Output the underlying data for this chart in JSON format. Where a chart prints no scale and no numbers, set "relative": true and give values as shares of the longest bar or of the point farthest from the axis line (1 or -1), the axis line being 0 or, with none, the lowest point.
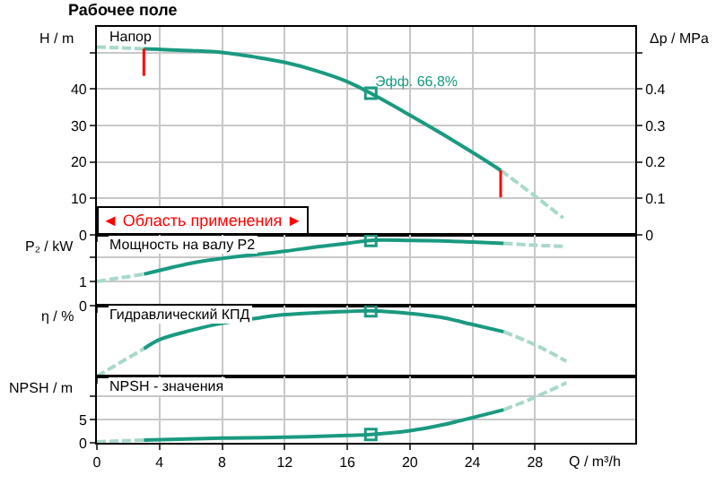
{
  "chart_data": [
    {
      "type": "line",
      "title": "Рабочее поле",
      "ylabel": "H / m",
      "y2label": "Δp / MPa",
      "xlim": [
        0,
        34.4
      ],
      "xticks": [
        0,
        4,
        8,
        12,
        16,
        20,
        24,
        28
      ],
      "ylim": [
        0,
        57
      ],
      "yticks": [
        0,
        10,
        20,
        30,
        40,
        {
          "value": 50,
          "label": null
        }
      ],
      "y2lim": [
        0,
        0.57
      ],
      "y2ticks": [
        0,
        0.1,
        0.2,
        0.3,
        0.4,
        {
          "value": 0.5,
          "label": null
        }
      ],
      "grid": true,
      "tick_labels": "y",
      "annotations": [
        "Напор",
        {
          "text": "Эфф. 66,8%",
          "x": 17.5,
          "y": 38.8
        },
        "◄ Область применения ►"
      ],
      "ref_lines": [
        {
          "axis": "x",
          "value": 3,
          "color": "#ff0000"
        },
        {
          "axis": "x",
          "value": 25.8,
          "color": "#ff0000"
        }
      ],
      "series": [
        {
          "color": "#1a9a80",
          "x": [
            3,
            6,
            8,
            10,
            12,
            14,
            16,
            17.5,
            20,
            22,
            24,
            25.8
          ],
          "values": [
            51,
            50.5,
            50,
            48.8,
            47.3,
            45,
            42,
            38.8,
            32.8,
            27.8,
            22.6,
            17.7
          ]
        },
        {
          "color": "#a8d8cc",
          "line_style": "dashed",
          "x": [
            0,
            3
          ],
          "values": [
            51.5,
            51
          ]
        },
        {
          "color": "#a8d8cc",
          "line_style": "dashed",
          "x": [
            25.8,
            28,
            29.8
          ],
          "values": [
            17.7,
            10.6,
            4.6
          ]
        },
        {
          "type": "scatter",
          "marker": "square",
          "color": "#1a9a80",
          "x": [
            17.5
          ],
          "values": [
            38.8
          ]
        }
      ]
    },
    {
      "type": "line",
      "ylabel": "P₂ / kW",
      "xlim": [
        0,
        34.4
      ],
      "xticks": [
        0,
        4,
        8,
        12,
        16,
        20,
        24,
        28
      ],
      "ylim": [
        0,
        2.93
      ],
      "yticks": [
        0,
        1,
        {
          "value": 2,
          "label": null
        }
      ],
      "grid": true,
      "tick_labels": "y",
      "annotations": [
        "Мощность на валу P2"
      ],
      "series": [
        {
          "color": "#1a9a80",
          "x": [
            3,
            6,
            8,
            10,
            12,
            14,
            16,
            17.5,
            20,
            22,
            24,
            26
          ],
          "values": [
            1.3,
            1.75,
            1.95,
            2.1,
            2.25,
            2.43,
            2.58,
            2.7,
            2.7,
            2.68,
            2.63,
            2.58
          ]
        },
        {
          "color": "#a8d8cc",
          "line_style": "dashed",
          "x": [
            0,
            3
          ],
          "values": [
            1.0,
            1.3
          ]
        },
        {
          "color": "#a8d8cc",
          "line_style": "dashed",
          "x": [
            26,
            28,
            30
          ],
          "values": [
            2.58,
            2.5,
            2.45
          ]
        },
        {
          "type": "scatter",
          "marker": "square",
          "color": "#1a9a80",
          "x": [
            17.5
          ],
          "values": [
            2.7
          ]
        }
      ]
    },
    {
      "type": "line",
      "ylabel": "η / %",
      "relative": true,
      "xlim": [
        0,
        34.4
      ],
      "xticks": [
        0,
        4,
        8,
        12,
        16,
        20,
        24,
        28
      ],
      "grid": "x",
      "tick_labels": false,
      "annotations": [
        "Гидравлический КПД"
      ],
      "series": [
        {
          "color": "#1a9a80",
          "x": [
            3,
            4,
            6,
            8,
            10,
            12,
            14,
            16,
            17.5,
            20,
            22,
            24,
            26
          ],
          "values": [
            0.42,
            0.56,
            0.7,
            0.81,
            0.88,
            0.94,
            0.97,
            0.99,
            1,
            0.96,
            0.9,
            0.79,
            0.68
          ]
        },
        {
          "color": "#a8d8cc",
          "line_style": "dashed",
          "x": [
            0,
            3
          ],
          "values": [
            0,
            0.42
          ]
        },
        {
          "color": "#a8d8cc",
          "line_style": "dashed",
          "x": [
            26,
            28,
            30
          ],
          "values": [
            0.68,
            0.48,
            0.23
          ]
        },
        {
          "type": "scatter",
          "marker": "square",
          "color": "#1a9a80",
          "x": [
            17.5
          ],
          "values": [
            1
          ]
        }
      ]
    },
    {
      "type": "line",
      "ylabel": "NPSH / m",
      "xlabel": "Q / m³/h",
      "xlim": [
        0,
        34.4
      ],
      "xticks": [
        0,
        4,
        8,
        12,
        16,
        20,
        24,
        28
      ],
      "ylim": [
        0,
        14.3
      ],
      "yticks": [
        0,
        5,
        {
          "value": 10,
          "label": null
        }
      ],
      "grid": true,
      "annotations": [
        "NPSH - значения"
      ],
      "series": [
        {
          "color": "#1a9a80",
          "x": [
            3,
            8,
            12,
            16,
            17.5,
            20,
            22,
            24,
            26
          ],
          "values": [
            0.6,
            1.0,
            1.2,
            1.6,
            1.8,
            2.6,
            3.8,
            5.4,
            7.1
          ]
        },
        {
          "color": "#a8d8cc",
          "line_style": "dashed",
          "x": [
            0,
            3
          ],
          "values": [
            0.2,
            0.6
          ]
        },
        {
          "color": "#a8d8cc",
          "line_style": "dashed",
          "x": [
            26,
            28,
            30
          ],
          "values": [
            7.1,
            9.8,
            12.9
          ]
        },
        {
          "type": "scatter",
          "marker": "square",
          "color": "#1a9a80",
          "x": [
            17.5
          ],
          "values": [
            1.8
          ]
        }
      ]
    }
  ]
}
